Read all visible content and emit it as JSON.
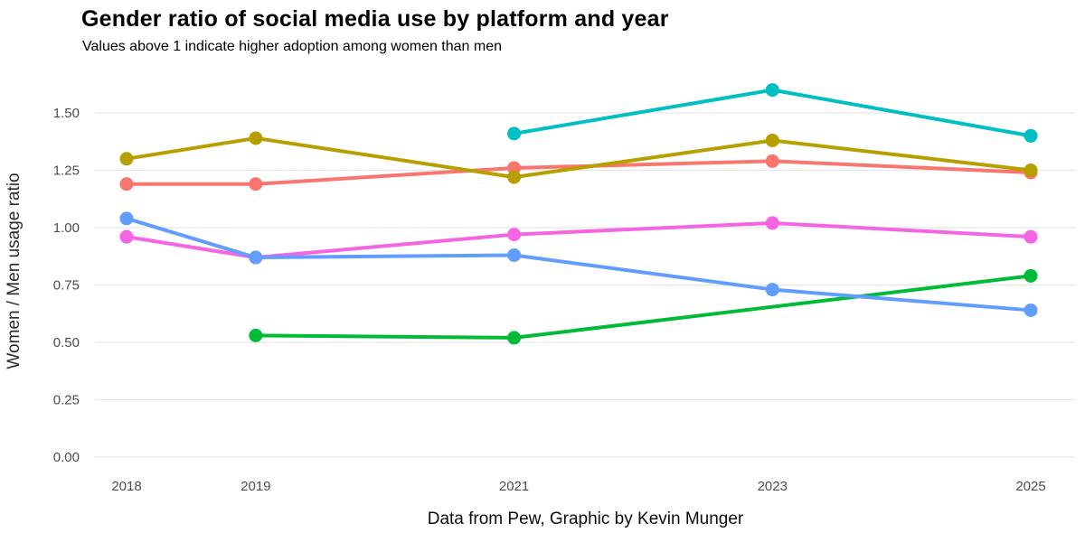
{
  "header": {
    "title": "Gender ratio of social media use by platform and year",
    "subtitle": "Values above 1 indicate higher adoption among women than men"
  },
  "footer": {
    "caption": "Data from Pew, Graphic by Kevin Munger"
  },
  "chart_data": {
    "type": "line",
    "title": "Gender ratio of social media use by platform and year",
    "subtitle": "Values above 1 indicate higher adoption among women than men",
    "caption": "Data from Pew, Graphic by Kevin Munger",
    "xlabel": "",
    "ylabel": "Women / Men usage ratio",
    "x_ticks": [
      2018,
      2019,
      2021,
      2023,
      2025
    ],
    "y_ticks": [
      0.0,
      0.25,
      0.5,
      0.75,
      1.0,
      1.25,
      1.5
    ],
    "xlim": [
      2018,
      2025
    ],
    "ylim": [
      0.0,
      1.6
    ],
    "grid": "horizontal-major-only",
    "legend": "none",
    "marker": "circle",
    "background_color": "#ffffff",
    "grid_color": "#e7e7e7",
    "tick_label_color": "#4d4d4d",
    "series": [
      {
        "name": "salmon",
        "color": "#F8766D",
        "points": [
          {
            "x": 2018,
            "y": 1.19
          },
          {
            "x": 2019,
            "y": 1.19
          },
          {
            "x": 2021,
            "y": 1.26
          },
          {
            "x": 2023,
            "y": 1.29
          },
          {
            "x": 2025,
            "y": 1.24
          }
        ]
      },
      {
        "name": "olive",
        "color": "#B79F00",
        "points": [
          {
            "x": 2018,
            "y": 1.3
          },
          {
            "x": 2019,
            "y": 1.39
          },
          {
            "x": 2021,
            "y": 1.22
          },
          {
            "x": 2023,
            "y": 1.38
          },
          {
            "x": 2025,
            "y": 1.25
          }
        ]
      },
      {
        "name": "green",
        "color": "#00BA38",
        "points": [
          {
            "x": 2019,
            "y": 0.53
          },
          {
            "x": 2021,
            "y": 0.52
          },
          {
            "x": 2025,
            "y": 0.79
          }
        ]
      },
      {
        "name": "teal",
        "color": "#00BFC4",
        "points": [
          {
            "x": 2021,
            "y": 1.41
          },
          {
            "x": 2023,
            "y": 1.6
          },
          {
            "x": 2025,
            "y": 1.4
          }
        ]
      },
      {
        "name": "magenta",
        "color": "#F564E3",
        "points": [
          {
            "x": 2018,
            "y": 0.96
          },
          {
            "x": 2019,
            "y": 0.87
          },
          {
            "x": 2021,
            "y": 0.97
          },
          {
            "x": 2023,
            "y": 1.02
          },
          {
            "x": 2025,
            "y": 0.96
          }
        ]
      },
      {
        "name": "blue",
        "color": "#619CFF",
        "points": [
          {
            "x": 2018,
            "y": 1.04
          },
          {
            "x": 2019,
            "y": 0.87
          },
          {
            "x": 2021,
            "y": 0.88
          },
          {
            "x": 2023,
            "y": 0.73
          },
          {
            "x": 2025,
            "y": 0.64
          }
        ]
      }
    ]
  }
}
